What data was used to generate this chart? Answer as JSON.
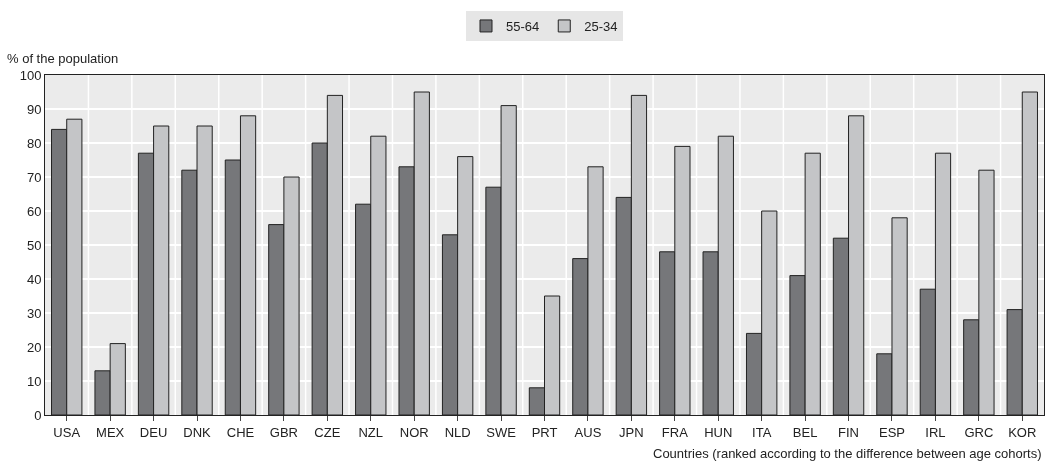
{
  "chart_data": {
    "type": "bar",
    "ylabel": "% of the population",
    "xlabel": "Countries (ranked according to the difference between age cohorts)",
    "categories": [
      "USA",
      "MEX",
      "DEU",
      "DNK",
      "CHE",
      "GBR",
      "CZE",
      "NZL",
      "NOR",
      "NLD",
      "SWE",
      "PRT",
      "AUS",
      "JPN",
      "FRA",
      "HUN",
      "ITA",
      "BEL",
      "FIN",
      "ESP",
      "IRL",
      "GRC",
      "KOR"
    ],
    "series": [
      {
        "name": "55-64",
        "color": "#76777a",
        "values": [
          84,
          13,
          77,
          72,
          75,
          56,
          80,
          62,
          73,
          53,
          67,
          8,
          46,
          64,
          48,
          48,
          24,
          41,
          52,
          18,
          37,
          28,
          31
        ]
      },
      {
        "name": "25-34",
        "color": "#c4c5c7",
        "values": [
          87,
          21,
          85,
          85,
          88,
          70,
          94,
          82,
          95,
          76,
          91,
          35,
          73,
          94,
          79,
          82,
          60,
          77,
          88,
          58,
          77,
          72,
          95
        ]
      }
    ],
    "ylim": [
      0,
      100
    ],
    "yticks": [
      0,
      10,
      20,
      30,
      40,
      50,
      60,
      70,
      80,
      90,
      100
    ],
    "grid": true,
    "legend": "top"
  }
}
